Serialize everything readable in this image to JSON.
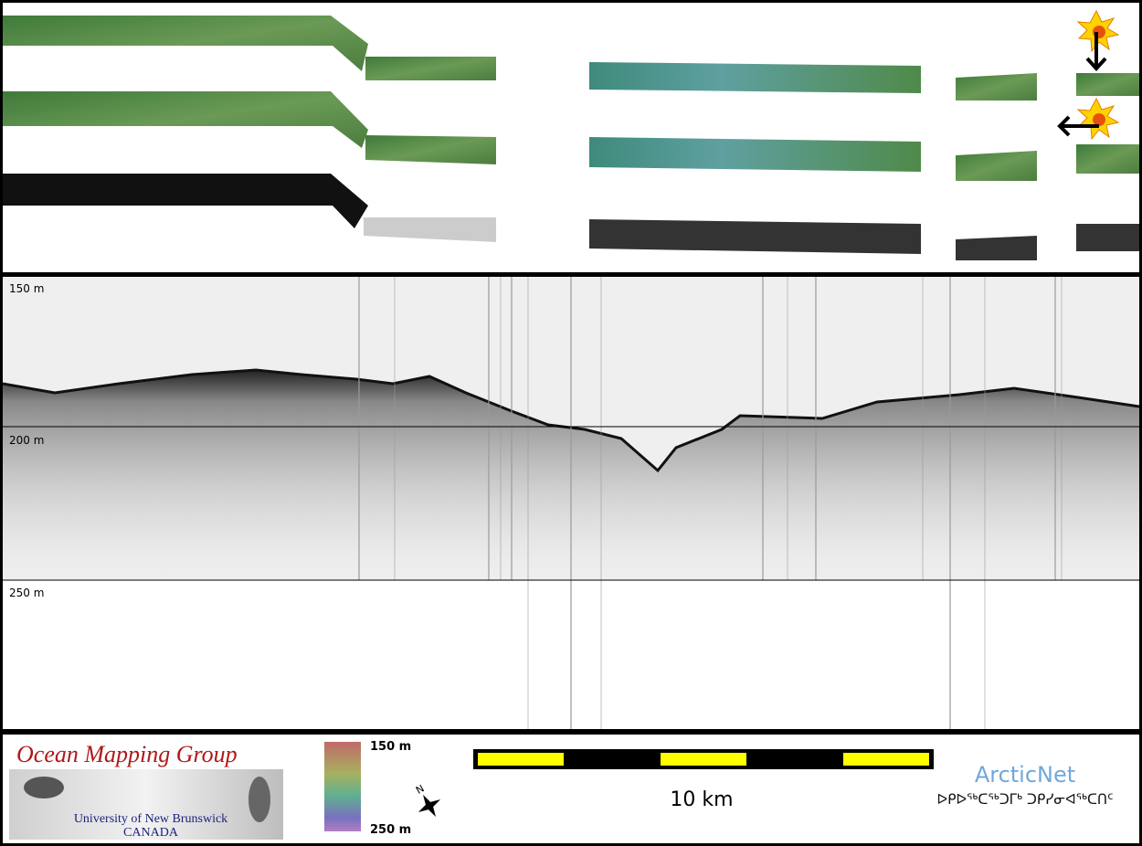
{
  "profile": {
    "depth_labels": [
      "150 m",
      "200 m",
      "250 m"
    ]
  },
  "footer": {
    "group_title": "Ocean Mapping Group",
    "university": "University of New Brunswick",
    "country": "CANADA",
    "colorbar_top": "150 m",
    "colorbar_bottom": "250 m",
    "scale": "10 km",
    "partner": "ArcticNet",
    "partner_syllabics": "ᐅᑭᐅᖅᑕᖅᑐᒥᒃ ᑐᑭᓯᓂᐊᖅᑕᑎᑦ"
  }
}
